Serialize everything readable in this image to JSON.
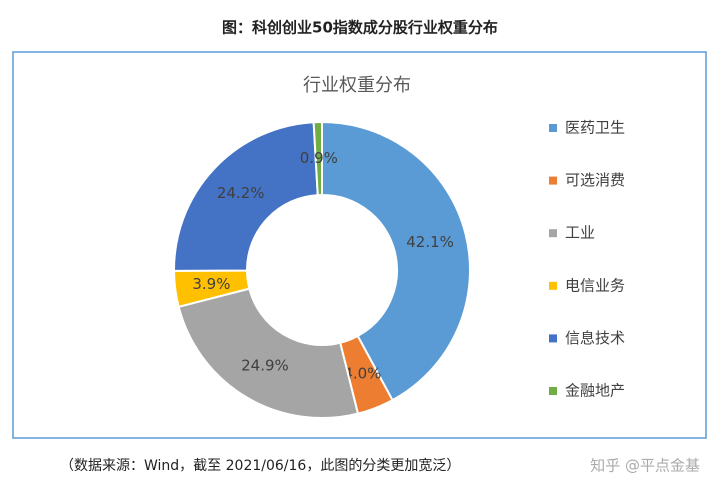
{
  "header": {
    "title": "图：科创创业50指数成分股行业权重分布"
  },
  "chart_data": {
    "type": "pie",
    "donut": true,
    "title": "行业权重分布",
    "categories": [
      "医药卫生",
      "可选消费",
      "工业",
      "电信业务",
      "信息技术",
      "金融地产"
    ],
    "values": [
      42.1,
      4.0,
      24.9,
      3.9,
      24.2,
      0.9
    ],
    "value_labels": [
      "42.1%",
      "4.0%",
      "24.9%",
      "3.9%",
      "24.2%",
      "0.9%"
    ],
    "colors": [
      "#5b9bd5",
      "#ed7d31",
      "#a5a5a5",
      "#ffc000",
      "#4472c4",
      "#70ad47"
    ],
    "legend": "right"
  },
  "footer": {
    "source": "（数据来源：Wind，截至 2021/06/16，此图的分类更加宽泛）",
    "watermark": "知乎 @平点金基"
  }
}
